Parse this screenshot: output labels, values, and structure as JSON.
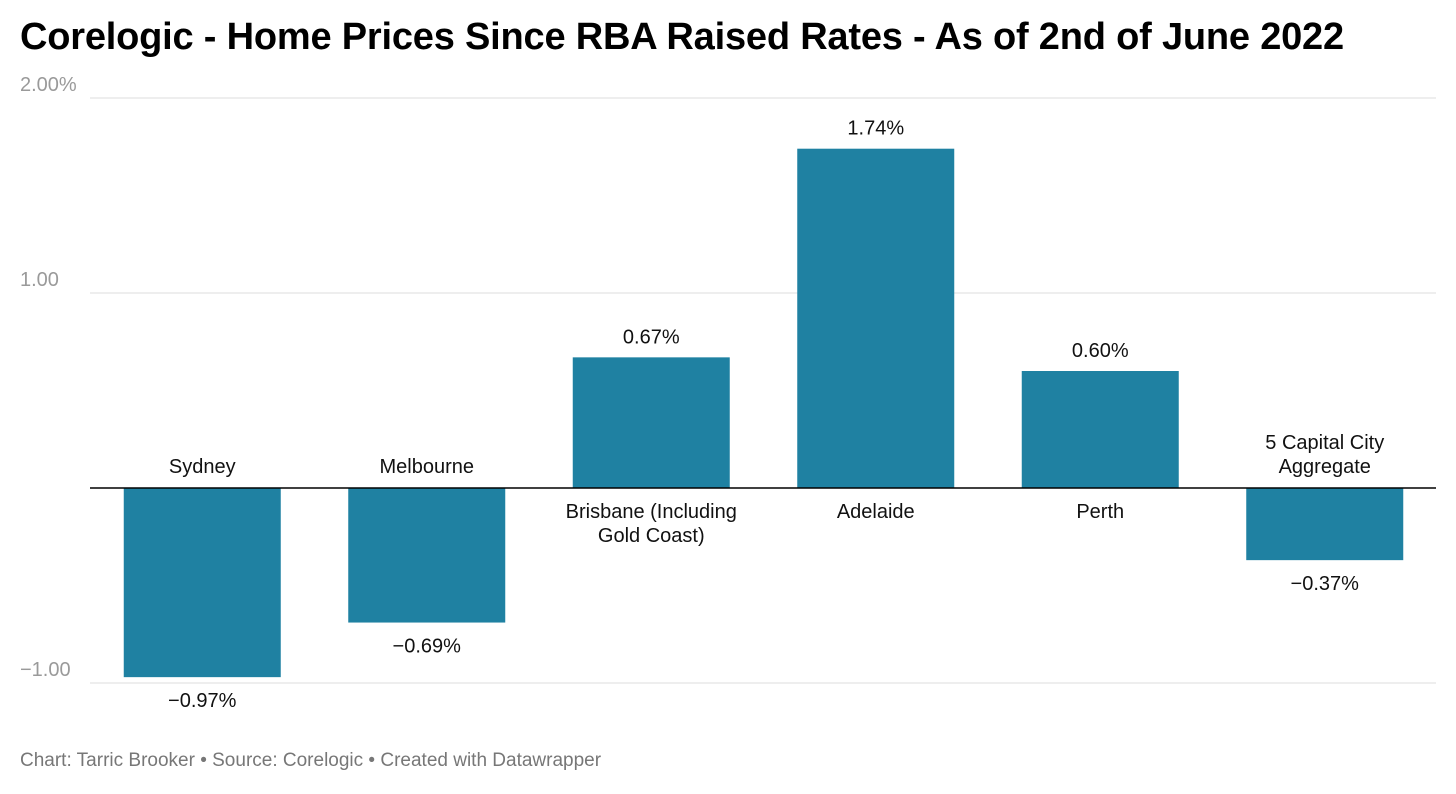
{
  "title": "Corelogic - Home Prices Since RBA Raised Rates - As of 2nd of June 2022",
  "footer": {
    "text": "Chart: Tarric Brooker • Source: Corelogic • Created with Datawrapper"
  },
  "colors": {
    "bar": "#1f81a2",
    "grid": "#dddddd",
    "baseline": "#000000"
  },
  "chart_data": {
    "type": "bar",
    "title": "Corelogic - Home Prices Since RBA Raised Rates - As of 2nd of June 2022",
    "xlabel": "",
    "ylabel": "",
    "ylim": [
      -1,
      2
    ],
    "grid": true,
    "legend": "none",
    "categories": [
      [
        "Sydney"
      ],
      [
        "Melbourne"
      ],
      [
        "Brisbane (Including",
        "Gold Coast)"
      ],
      [
        "Adelaide"
      ],
      [
        "Perth"
      ],
      [
        "5 Capital City",
        "Aggregate"
      ]
    ],
    "values": [
      -0.97,
      -0.69,
      0.67,
      1.74,
      0.6,
      -0.37
    ],
    "value_labels": [
      "−0.97%",
      "−0.69%",
      "0.67%",
      "1.74%",
      "0.60%",
      "−0.37%"
    ],
    "y_ticks": [
      {
        "value": 2,
        "label": "2.00%"
      },
      {
        "value": 1,
        "label": "1.00"
      },
      {
        "value": -1,
        "label": "−1.00"
      }
    ]
  }
}
